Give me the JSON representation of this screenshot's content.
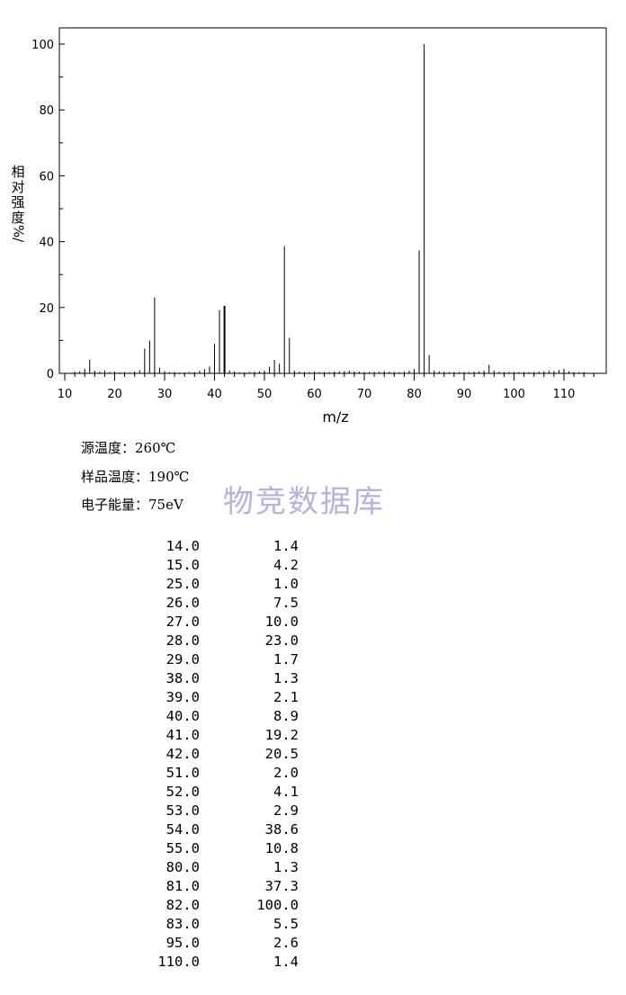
{
  "chart_data": {
    "type": "bar",
    "title": "",
    "xlabel": "m/z",
    "ylabel_chars": [
      "相",
      "对",
      "强",
      "度",
      "%/"
    ],
    "xlim": [
      10,
      116
    ],
    "ylim": [
      0,
      100
    ],
    "x_ticks": [
      10,
      20,
      30,
      40,
      50,
      60,
      70,
      80,
      90,
      100,
      110
    ],
    "y_ticks": [
      0,
      20,
      40,
      60,
      80,
      100
    ],
    "grid": false,
    "series": [
      {
        "x": [
          12,
          13,
          14,
          15,
          16,
          17,
          18,
          19,
          20,
          21,
          22,
          23,
          24,
          25,
          26,
          27,
          28,
          29,
          30,
          31,
          32,
          33,
          34,
          35,
          36,
          37,
          38,
          39,
          40,
          41,
          42,
          43,
          44,
          45,
          46,
          47,
          48,
          49,
          50,
          51,
          52,
          53,
          54,
          55,
          56,
          57,
          58,
          59,
          60,
          61,
          62,
          63,
          64,
          65,
          66,
          67,
          68,
          69,
          70,
          71,
          72,
          73,
          74,
          75,
          76,
          77,
          78,
          79,
          80,
          81,
          82,
          83,
          84,
          85,
          86,
          87,
          88,
          89,
          90,
          91,
          92,
          93,
          94,
          95,
          96,
          97,
          98,
          99,
          100,
          101,
          102,
          103,
          104,
          105,
          106,
          107,
          108,
          109,
          110,
          111,
          112,
          113,
          114
        ],
        "values": [
          0.5,
          0.6,
          1.4,
          4.2,
          0.8,
          0.5,
          0.9,
          0.4,
          0.5,
          0.3,
          0.4,
          0.3,
          0.6,
          1.0,
          7.5,
          10.0,
          23.0,
          1.7,
          0.7,
          0.4,
          0.4,
          0.3,
          0.3,
          0.4,
          0.4,
          0.8,
          1.3,
          2.1,
          8.9,
          19.2,
          20.5,
          0.9,
          0.6,
          0.4,
          0.3,
          0.4,
          0.5,
          0.6,
          0.9,
          2.0,
          4.1,
          2.9,
          38.6,
          10.8,
          0.8,
          0.5,
          0.4,
          0.4,
          0.5,
          0.4,
          0.4,
          0.4,
          0.5,
          0.6,
          0.7,
          0.8,
          0.6,
          0.5,
          0.4,
          0.4,
          0.4,
          0.5,
          0.7,
          0.5,
          0.4,
          0.4,
          0.5,
          0.8,
          1.3,
          37.3,
          100.0,
          5.5,
          0.8,
          0.6,
          0.5,
          0.4,
          0.4,
          0.4,
          0.4,
          0.4,
          0.5,
          0.6,
          0.8,
          2.6,
          0.9,
          0.5,
          0.4,
          0.4,
          0.4,
          0.4,
          0.4,
          0.4,
          0.4,
          0.5,
          0.6,
          0.8,
          0.7,
          1.0,
          1.4,
          0.6,
          0.4,
          0.4,
          0.4
        ]
      }
    ]
  },
  "conditions": [
    {
      "label": "源温度：",
      "value": "260℃"
    },
    {
      "label": "样品温度：",
      "value": "190℃"
    },
    {
      "label": "电子能量：",
      "value": "75eV"
    }
  ],
  "watermark": "物竞数据库",
  "peak_table": [
    {
      "mz": "14.0",
      "intensity": "1.4"
    },
    {
      "mz": "15.0",
      "intensity": "4.2"
    },
    {
      "mz": "25.0",
      "intensity": "1.0"
    },
    {
      "mz": "26.0",
      "intensity": "7.5"
    },
    {
      "mz": "27.0",
      "intensity": "10.0"
    },
    {
      "mz": "28.0",
      "intensity": "23.0"
    },
    {
      "mz": "29.0",
      "intensity": "1.7"
    },
    {
      "mz": "38.0",
      "intensity": "1.3"
    },
    {
      "mz": "39.0",
      "intensity": "2.1"
    },
    {
      "mz": "40.0",
      "intensity": "8.9"
    },
    {
      "mz": "41.0",
      "intensity": "19.2"
    },
    {
      "mz": "42.0",
      "intensity": "20.5"
    },
    {
      "mz": "51.0",
      "intensity": "2.0"
    },
    {
      "mz": "52.0",
      "intensity": "4.1"
    },
    {
      "mz": "53.0",
      "intensity": "2.9"
    },
    {
      "mz": "54.0",
      "intensity": "38.6"
    },
    {
      "mz": "55.0",
      "intensity": "10.8"
    },
    {
      "mz": "80.0",
      "intensity": "1.3"
    },
    {
      "mz": "81.0",
      "intensity": "37.3"
    },
    {
      "mz": "82.0",
      "intensity": "100.0"
    },
    {
      "mz": "83.0",
      "intensity": "5.5"
    },
    {
      "mz": "95.0",
      "intensity": "2.6"
    },
    {
      "mz": "110.0",
      "intensity": "1.4"
    }
  ]
}
